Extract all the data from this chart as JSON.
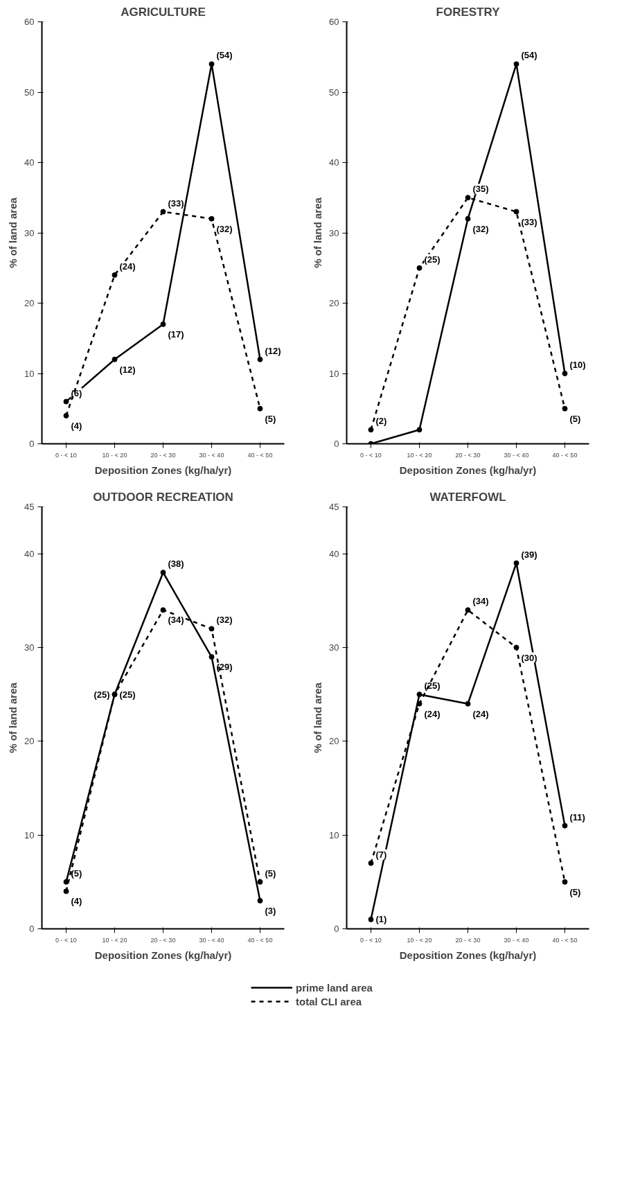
{
  "chart_data": [
    {
      "type": "line",
      "title": "AGRICULTURE",
      "xlabel": "Deposition Zones (kg/ha/yr)",
      "ylabel": "% of land area",
      "categories": [
        "0 - < 10",
        "10 - < 20",
        "20 - < 30",
        "30 - < 40",
        "40 - < 50"
      ],
      "ylim": [
        0,
        60
      ],
      "yticks": [
        0,
        10,
        20,
        30,
        40,
        50,
        60
      ],
      "grid": false,
      "legend": "bottom",
      "marker": "circle",
      "series": [
        {
          "name": "prime land area",
          "color": "#000000",
          "line_style": "solid",
          "values": [
            6,
            12,
            17,
            54,
            12
          ],
          "value_labels": [
            "(6)",
            "(12)",
            "(17)",
            "(54)",
            "(12)"
          ]
        },
        {
          "name": "total CLI area",
          "color": "#000000",
          "line_style": "dashed",
          "values": [
            4,
            24,
            33,
            32,
            5
          ],
          "value_labels": [
            "(4)",
            "(24)",
            "(33)",
            "(32)",
            "(5)"
          ]
        }
      ]
    },
    {
      "type": "line",
      "title": "FORESTRY",
      "xlabel": "Deposition Zones (kg/ha/yr)",
      "ylabel": "% of land area",
      "categories": [
        "0 - < 10",
        "10 - < 20",
        "20 - < 30",
        "30 - < 40",
        "40 - < 50"
      ],
      "ylim": [
        0,
        60
      ],
      "yticks": [
        0,
        10,
        20,
        30,
        40,
        50,
        60
      ],
      "grid": false,
      "legend": "bottom",
      "marker": "circle",
      "series": [
        {
          "name": "prime land area",
          "color": "#000000",
          "line_style": "solid",
          "values": [
            0,
            2,
            32,
            54,
            10
          ],
          "value_labels": [
            null,
            null,
            "(32)",
            "(54)",
            "(10)"
          ]
        },
        {
          "name": "total CLI area",
          "color": "#000000",
          "line_style": "dashed",
          "values": [
            2,
            25,
            35,
            33,
            5
          ],
          "value_labels": [
            "(2)",
            "(25)",
            "(35)",
            "(33)",
            "(5)"
          ]
        }
      ]
    },
    {
      "type": "line",
      "title": "OUTDOOR RECREATION",
      "xlabel": "Deposition Zones (kg/ha/yr)",
      "ylabel": "% of land area",
      "categories": [
        "0 - < 10",
        "10 - < 20",
        "20 - < 30",
        "30 - < 40",
        "40 - < 50"
      ],
      "ylim": [
        0,
        45
      ],
      "yticks": [
        0,
        10,
        20,
        30,
        40,
        45
      ],
      "grid": false,
      "legend": "bottom",
      "marker": "circle",
      "series": [
        {
          "name": "prime land area",
          "color": "#000000",
          "line_style": "solid",
          "values": [
            5,
            25,
            38,
            29,
            3
          ],
          "value_labels": [
            "(5)",
            "(25)",
            "(38)",
            "(29)",
            "(3)"
          ]
        },
        {
          "name": "total CLI area",
          "color": "#000000",
          "line_style": "dashed",
          "values": [
            4,
            25,
            34,
            32,
            5
          ],
          "value_labels": [
            "(4)",
            "(25)",
            "(34)",
            "(32)",
            "(5)"
          ]
        }
      ]
    },
    {
      "type": "line",
      "title": "WATERFOWL",
      "xlabel": "Deposition Zones (kg/ha/yr)",
      "ylabel": "% of land area",
      "categories": [
        "0 - < 10",
        "10 - < 20",
        "20 - < 30",
        "30 - < 40",
        "40 - < 50"
      ],
      "ylim": [
        0,
        45
      ],
      "yticks": [
        0,
        10,
        20,
        30,
        40,
        45
      ],
      "grid": false,
      "legend": "bottom",
      "marker": "circle",
      "series": [
        {
          "name": "prime land area",
          "color": "#000000",
          "line_style": "solid",
          "values": [
            1,
            25,
            24,
            39,
            11
          ],
          "value_labels": [
            "(1)",
            "(25)",
            "(24)",
            "(39)",
            "(11)"
          ]
        },
        {
          "name": "total CLI area",
          "color": "#000000",
          "line_style": "dashed",
          "values": [
            7,
            24,
            34,
            30,
            5
          ],
          "value_labels": [
            "(7)",
            "(24)",
            "(34)",
            "(30)",
            "(5)"
          ]
        }
      ]
    }
  ]
}
